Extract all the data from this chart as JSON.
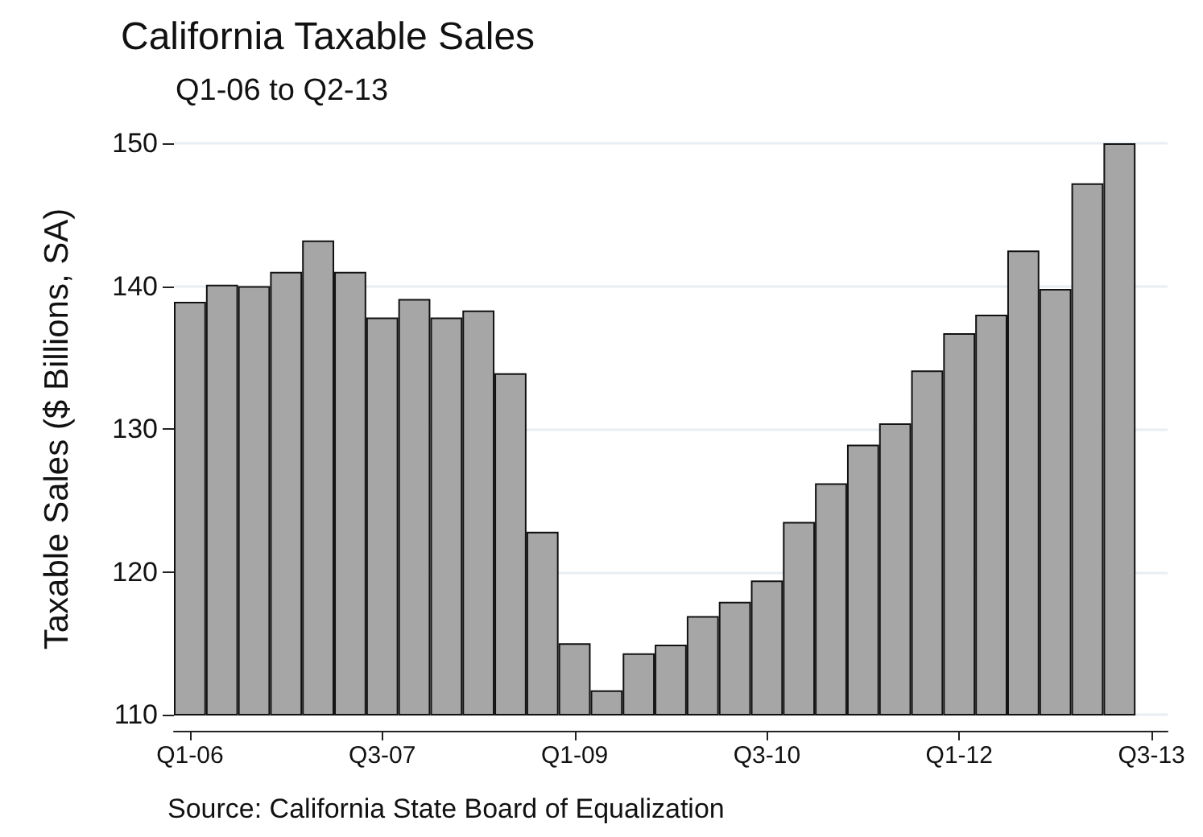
{
  "chart_data": {
    "type": "bar",
    "title": "California Taxable Sales",
    "subtitle": "Q1-06 to Q2-13",
    "ylabel": "Taxable Sales ($ Billions, SA)",
    "annotations": [
      "Source: California State Board of Equalization"
    ],
    "categories": [
      "Q1-06",
      null,
      null,
      null,
      null,
      null,
      "Q3-07",
      null,
      null,
      null,
      null,
      null,
      "Q1-09",
      null,
      null,
      null,
      null,
      null,
      "Q3-10",
      null,
      null,
      null,
      null,
      null,
      "Q1-12",
      null,
      null,
      null,
      null,
      null,
      "Q3-13"
    ],
    "values": [
      138.9,
      140.1,
      140.0,
      141.0,
      143.2,
      141.0,
      137.8,
      139.1,
      137.8,
      138.3,
      133.9,
      122.8,
      115.0,
      111.7,
      114.3,
      114.9,
      116.9,
      117.9,
      119.4,
      123.5,
      126.2,
      128.9,
      130.4,
      134.1,
      136.7,
      138.0,
      142.5,
      139.8,
      147.2,
      150.0,
      null
    ],
    "color": "#a6a6a6",
    "ylim": [
      110,
      150
    ],
    "yticks": [
      110,
      120,
      130,
      140,
      150
    ],
    "grid": "y"
  }
}
